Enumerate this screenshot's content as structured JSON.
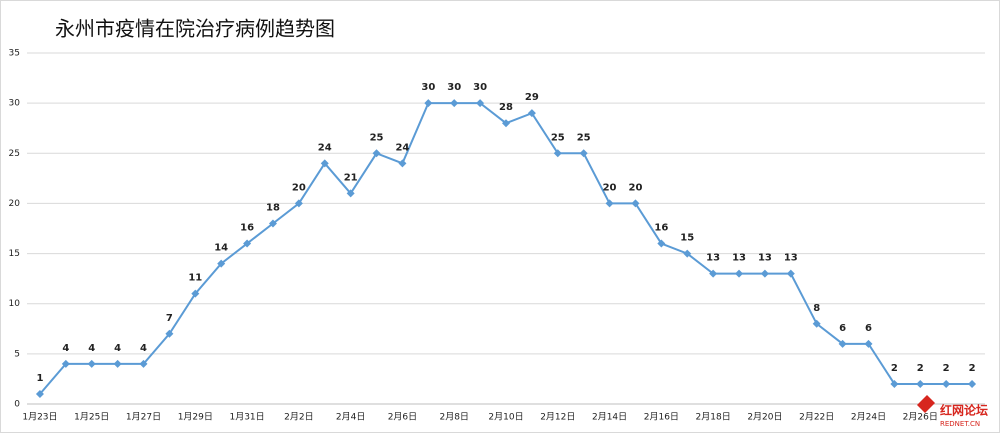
{
  "chart_data": {
    "type": "line",
    "title": "永州市疫情在院治疗病例趋势图",
    "categories": [
      "1月23日",
      null,
      "1月25日",
      null,
      "1月27日",
      null,
      "1月29日",
      null,
      "1月31日",
      null,
      "2月2日",
      null,
      "2月4日",
      null,
      "2月6日",
      null,
      "2月8日",
      null,
      "2月10日",
      null,
      "2月12日",
      null,
      "2月14日",
      null,
      "2月16日",
      null,
      "2月18日",
      null,
      "2月20日",
      null,
      "2月22日",
      null,
      "2月24日",
      null,
      "2月26日",
      null,
      null
    ],
    "series": [
      {
        "name": "在院治疗病例",
        "color": "#5b9bd5",
        "values": [
          1,
          4,
          4,
          4,
          4,
          7,
          11,
          14,
          16,
          18,
          20,
          24,
          21,
          25,
          24,
          30,
          30,
          30,
          28,
          29,
          25,
          25,
          20,
          20,
          16,
          15,
          13,
          13,
          13,
          13,
          8,
          6,
          6,
          2,
          2,
          2,
          2
        ]
      }
    ],
    "ylim": [
      0,
      35
    ],
    "yticks": [
      0,
      5,
      10,
      15,
      20,
      25,
      30,
      35
    ],
    "grid": true
  },
  "watermark": {
    "text": "红网论坛",
    "sub": "REDNET.CN"
  }
}
